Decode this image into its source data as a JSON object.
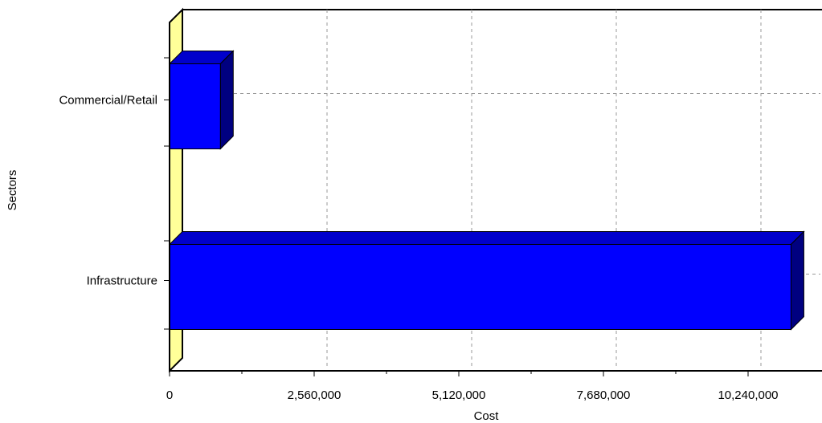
{
  "chart_data": {
    "type": "bar",
    "orientation": "horizontal",
    "style": "3d",
    "xlabel": "Cost",
    "ylabel": "Sectors",
    "categories": [
      "Commercial/Retail",
      "Infrastructure"
    ],
    "values": [
      900000,
      11000000
    ],
    "xlim": [
      0,
      11520000
    ],
    "xticks": [
      0,
      2560000,
      5120000,
      7680000,
      10240000
    ],
    "xtick_labels": [
      "0",
      "2,560,000",
      "5,120,000",
      "7,680,000",
      "10,240,000"
    ],
    "grid": true,
    "legend": "none",
    "colors": {
      "bar_face": "#0000ff",
      "bar_side": "#000080",
      "bar_top": "#0000cc",
      "wall": "#ffff99",
      "grid": "#999999",
      "axis": "#000000"
    }
  }
}
